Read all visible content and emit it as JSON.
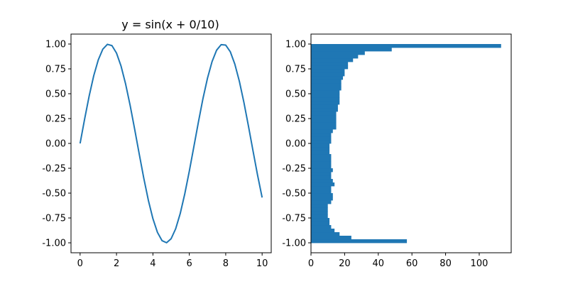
{
  "chart_data": [
    {
      "type": "line",
      "title": "y = sin(x + 0/10)",
      "xlabel": "",
      "ylabel": "",
      "xlim": [
        -0.5,
        10.5
      ],
      "ylim": [
        -1.1,
        1.1
      ],
      "x_ticks": [
        0,
        2,
        4,
        6,
        8,
        10
      ],
      "y_ticks": [
        -1.0,
        -0.75,
        -0.5,
        -0.25,
        0.0,
        0.25,
        0.5,
        0.75,
        1.0
      ],
      "grid": false,
      "color": "#1f77b4",
      "series": [
        {
          "x": [
            0.0,
            0.25,
            0.5,
            0.75,
            1.0,
            1.25,
            1.5,
            1.75,
            2.0,
            2.25,
            2.5,
            2.75,
            3.0,
            3.25,
            3.5,
            3.75,
            4.0,
            4.25,
            4.5,
            4.75,
            5.0,
            5.25,
            5.5,
            5.75,
            6.0,
            6.25,
            6.5,
            6.75,
            7.0,
            7.25,
            7.5,
            7.75,
            8.0,
            8.25,
            8.5,
            8.75,
            9.0,
            9.25,
            9.5,
            9.75,
            10.0
          ],
          "y": [
            0.0,
            0.247,
            0.479,
            0.682,
            0.841,
            0.949,
            0.997,
            0.984,
            0.909,
            0.778,
            0.598,
            0.382,
            0.141,
            -0.108,
            -0.351,
            -0.572,
            -0.757,
            -0.895,
            -0.978,
            -0.999,
            -0.959,
            -0.859,
            -0.706,
            -0.508,
            -0.279,
            -0.033,
            0.215,
            0.451,
            0.657,
            0.823,
            0.938,
            0.994,
            0.989,
            0.923,
            0.798,
            0.625,
            0.412,
            0.174,
            -0.075,
            -0.319,
            -0.544
          ]
        }
      ]
    },
    {
      "type": "bar",
      "orientation": "horizontal",
      "title": "",
      "xlabel": "",
      "ylabel": "",
      "xlim": [
        0,
        119
      ],
      "ylim": [
        -1.1,
        1.1
      ],
      "x_ticks": [
        0,
        20,
        40,
        60,
        80,
        100
      ],
      "y_ticks": [
        -1.0,
        -0.75,
        -0.5,
        -0.25,
        0.0,
        0.25,
        0.5,
        0.75,
        1.0
      ],
      "grid": false,
      "color": "#1f77b4",
      "bin_range": [
        -1.0,
        1.0
      ],
      "counts": [
        57,
        24,
        17,
        14,
        12,
        11,
        11,
        10,
        10,
        10,
        10,
        12,
        13,
        13,
        12,
        12,
        14,
        13,
        12,
        12,
        13,
        12,
        12,
        12,
        12,
        11,
        11,
        11,
        12,
        12,
        12,
        13,
        15,
        15,
        15,
        15,
        15,
        16,
        16,
        17,
        17,
        17,
        17,
        18,
        18,
        18,
        19,
        20,
        20,
        22,
        22,
        25,
        28,
        32,
        48,
        113
      ]
    }
  ]
}
